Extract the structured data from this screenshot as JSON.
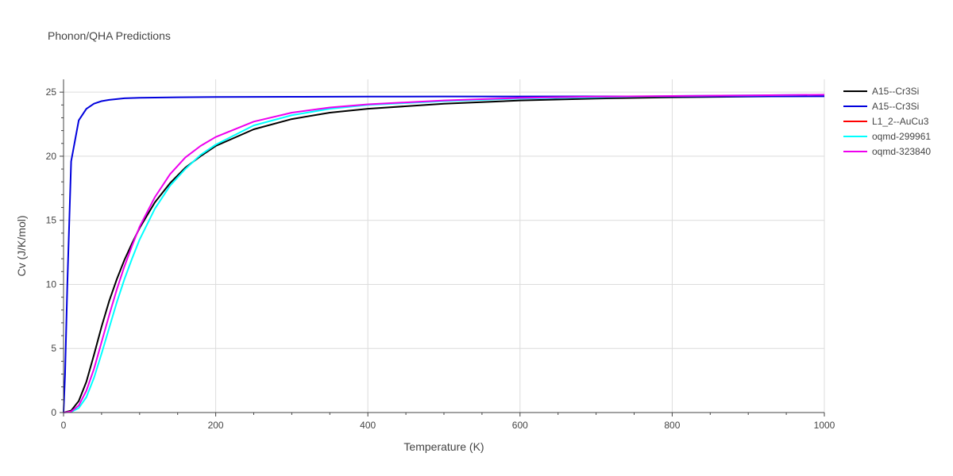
{
  "chart_data": {
    "type": "line",
    "title": "Phonon/QHA Predictions",
    "xlabel": "Temperature (K)",
    "ylabel": "Cv (J/K/mol)",
    "xlim": [
      0,
      1000
    ],
    "ylim": [
      0,
      26
    ],
    "xticks": [
      0,
      200,
      400,
      600,
      800,
      1000
    ],
    "yticks": [
      0,
      5,
      10,
      15,
      20,
      25
    ],
    "grid": true,
    "legend_position": "top-right",
    "series": [
      {
        "name": "A15--Cr3Si",
        "color": "#000000",
        "x": [
          0,
          10,
          20,
          30,
          40,
          50,
          60,
          70,
          80,
          90,
          100,
          120,
          140,
          160,
          180,
          200,
          250,
          300,
          350,
          400,
          500,
          600,
          700,
          800,
          900,
          1000
        ],
        "y": [
          0,
          0.15,
          0.9,
          2.4,
          4.5,
          6.7,
          8.7,
          10.4,
          11.9,
          13.2,
          14.4,
          16.4,
          17.9,
          19.1,
          20.0,
          20.8,
          22.1,
          22.9,
          23.4,
          23.7,
          24.1,
          24.35,
          24.5,
          24.6,
          24.65,
          24.7
        ]
      },
      {
        "name": "A15--Cr3Si",
        "color": "#0000dd",
        "x": [
          0,
          2,
          5,
          10,
          20,
          30,
          40,
          50,
          60,
          80,
          100,
          150,
          200,
          300,
          400,
          500,
          600,
          700,
          800,
          900,
          1000
        ],
        "y": [
          0,
          3,
          10,
          19.6,
          22.8,
          23.7,
          24.1,
          24.3,
          24.4,
          24.52,
          24.56,
          24.6,
          24.62,
          24.64,
          24.65,
          24.66,
          24.66,
          24.67,
          24.67,
          24.67,
          24.68
        ]
      },
      {
        "name": "L1_2--AuCu3",
        "color": "#ff0000",
        "x": [],
        "y": []
      },
      {
        "name": "oqmd-299961",
        "color": "#00ffff",
        "x": [
          0,
          10,
          20,
          30,
          40,
          50,
          60,
          70,
          80,
          90,
          100,
          120,
          140,
          160,
          180,
          200,
          250,
          300,
          350,
          400,
          500,
          600,
          700,
          800,
          900,
          1000
        ],
        "y": [
          0,
          0.05,
          0.35,
          1.2,
          2.7,
          4.6,
          6.6,
          8.6,
          10.4,
          12.0,
          13.5,
          15.9,
          17.7,
          19.0,
          20.1,
          20.9,
          22.4,
          23.2,
          23.7,
          24.0,
          24.3,
          24.5,
          24.6,
          24.7,
          24.75,
          24.8
        ]
      },
      {
        "name": "oqmd-323840",
        "color": "#ee00ee",
        "x": [
          0,
          10,
          20,
          30,
          40,
          50,
          60,
          70,
          80,
          90,
          100,
          120,
          140,
          160,
          180,
          200,
          250,
          300,
          350,
          400,
          500,
          600,
          700,
          800,
          900,
          1000
        ],
        "y": [
          0,
          0.08,
          0.55,
          1.7,
          3.4,
          5.5,
          7.6,
          9.6,
          11.4,
          13.0,
          14.5,
          16.8,
          18.6,
          19.9,
          20.8,
          21.5,
          22.7,
          23.4,
          23.8,
          24.05,
          24.35,
          24.55,
          24.65,
          24.7,
          24.75,
          24.8
        ]
      }
    ]
  }
}
